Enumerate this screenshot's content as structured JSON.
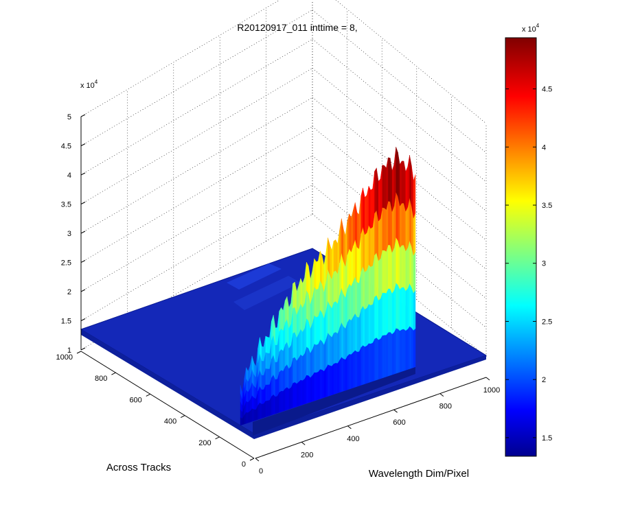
{
  "window": {
    "title": "R20120917_011 inttime = 8,"
  },
  "chart_data": {
    "type": "surface3d",
    "title": "R20120917_011 inttime = 8,",
    "xlabel": "Wavelength Dim/Pixel",
    "ylabel": "Across Tracks",
    "zlabel": "",
    "xlim": [
      0,
      1000
    ],
    "ylim": [
      0,
      1000
    ],
    "zlim": [
      12000,
      50000
    ],
    "x_ticks": [
      "0",
      "200",
      "400",
      "600",
      "800",
      "1000"
    ],
    "y_ticks": [
      "0",
      "200",
      "400",
      "600",
      "800",
      "1000"
    ],
    "z_ticks": [
      "1",
      "1.5",
      "2",
      "2.5",
      "3",
      "3.5",
      "4",
      "4.5",
      "5"
    ],
    "z_exponent": "x 10",
    "z_exponent_power": "4",
    "grid": true,
    "colormap": "jet",
    "colorbar": {
      "range": [
        13400,
        49400
      ],
      "ticks": [
        "1.5",
        "2",
        "2.5",
        "3",
        "3.5",
        "4",
        "4.5"
      ],
      "exponent": "x 10",
      "exponent_power": "4"
    },
    "background_level": 13500,
    "illuminated_region": {
      "wavelength_range": [
        0,
        450
      ],
      "across_track_range": [
        100,
        900
      ]
    },
    "profile": {
      "wavelength": [
        0,
        40,
        80,
        120,
        160,
        200,
        240,
        280,
        320,
        360,
        400,
        450
      ],
      "peak_counts": [
        20000,
        24000,
        27500,
        31000,
        34000,
        36000,
        38000,
        41000,
        44000,
        47000,
        48500,
        45000
      ]
    }
  }
}
